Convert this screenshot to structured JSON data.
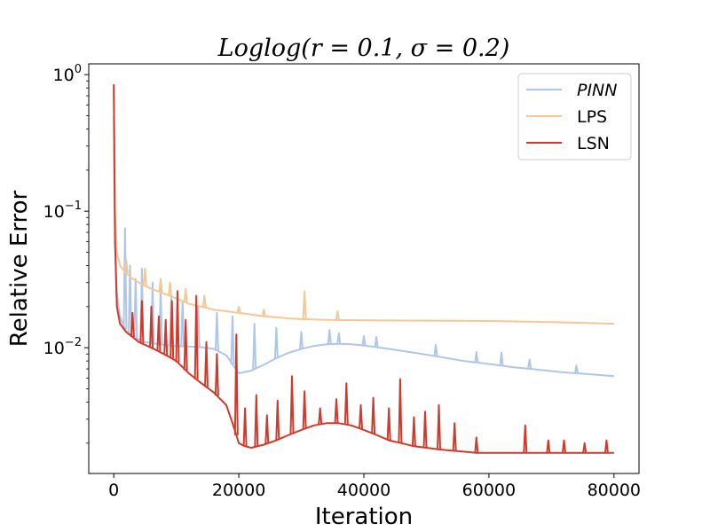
{
  "chart_data": {
    "type": "line",
    "title": "Loglog(r = 0.1, σ = 0.2)",
    "xlabel": "Iteration",
    "ylabel": "Relative Error",
    "xlim": [
      -4000,
      84000
    ],
    "ylim": [
      0.0012,
      1.2
    ],
    "yscale": "log",
    "x_ticks": [
      0,
      20000,
      40000,
      60000,
      80000
    ],
    "x_tick_labels": [
      "0",
      "20000",
      "40000",
      "60000",
      "80000"
    ],
    "y_ticks": [
      1,
      0.1,
      0.01
    ],
    "y_tick_labels": [
      {
        "base": "10",
        "exp": "0"
      },
      {
        "base": "10",
        "exp": "−1"
      },
      {
        "base": "10",
        "exp": "−2"
      }
    ],
    "grid": false,
    "legend_position": "top-right",
    "series": [
      {
        "name": "PINN",
        "color": "#aec7e8",
        "italic": true,
        "x": [
          0,
          200,
          500,
          1000,
          2000,
          3000,
          4000,
          5000,
          6000,
          8000,
          10000,
          12000,
          14000,
          16000,
          18000,
          20000,
          22000,
          24000,
          26000,
          28000,
          30000,
          32000,
          34000,
          36000,
          38000,
          40000,
          44000,
          48000,
          52000,
          56000,
          60000,
          64000,
          68000,
          72000,
          76000,
          80000
        ],
        "values": [
          0.5,
          0.06,
          0.025,
          0.017,
          0.013,
          0.012,
          0.0115,
          0.011,
          0.0108,
          0.0105,
          0.0103,
          0.0102,
          0.0101,
          0.0098,
          0.0088,
          0.0065,
          0.0068,
          0.0075,
          0.0084,
          0.0092,
          0.0098,
          0.0103,
          0.0106,
          0.0107,
          0.0106,
          0.0104,
          0.0098,
          0.0092,
          0.0086,
          0.008,
          0.0076,
          0.0072,
          0.0069,
          0.0066,
          0.0064,
          0.0062
        ],
        "spikes": [
          {
            "x": 1800,
            "y": 0.075
          },
          {
            "x": 2600,
            "y": 0.04
          },
          {
            "x": 3500,
            "y": 0.032
          },
          {
            "x": 4500,
            "y": 0.038
          },
          {
            "x": 6200,
            "y": 0.03
          },
          {
            "x": 7500,
            "y": 0.027
          },
          {
            "x": 9200,
            "y": 0.024
          },
          {
            "x": 11000,
            "y": 0.022
          },
          {
            "x": 13500,
            "y": 0.02
          },
          {
            "x": 16500,
            "y": 0.018
          },
          {
            "x": 19000,
            "y": 0.017
          },
          {
            "x": 22500,
            "y": 0.015
          },
          {
            "x": 26000,
            "y": 0.014
          },
          {
            "x": 30000,
            "y": 0.013
          },
          {
            "x": 34500,
            "y": 0.0135
          },
          {
            "x": 36000,
            "y": 0.0128
          },
          {
            "x": 40000,
            "y": 0.0122
          },
          {
            "x": 42000,
            "y": 0.012
          },
          {
            "x": 51500,
            "y": 0.0105
          },
          {
            "x": 58000,
            "y": 0.0093
          },
          {
            "x": 62000,
            "y": 0.0092
          },
          {
            "x": 66500,
            "y": 0.0082
          },
          {
            "x": 74000,
            "y": 0.0074
          }
        ]
      },
      {
        "name": "LPS",
        "color": "#f4c896",
        "italic": false,
        "x": [
          0,
          200,
          500,
          1000,
          2000,
          3000,
          4000,
          6000,
          8000,
          10000,
          12000,
          14000,
          16000,
          18000,
          20000,
          22000,
          24000,
          26000,
          28000,
          30000,
          34000,
          40000,
          50000,
          60000,
          70000,
          80000
        ],
        "values": [
          0.8,
          0.1,
          0.05,
          0.04,
          0.035,
          0.032,
          0.03,
          0.027,
          0.025,
          0.023,
          0.021,
          0.02,
          0.019,
          0.0185,
          0.018,
          0.0175,
          0.017,
          0.0167,
          0.0164,
          0.0162,
          0.016,
          0.0159,
          0.0158,
          0.0157,
          0.0154,
          0.015
        ],
        "spikes": [
          {
            "x": 2000,
            "y": 0.044
          },
          {
            "x": 5000,
            "y": 0.038
          },
          {
            "x": 7500,
            "y": 0.032
          },
          {
            "x": 9000,
            "y": 0.03
          },
          {
            "x": 11500,
            "y": 0.027
          },
          {
            "x": 14500,
            "y": 0.024
          },
          {
            "x": 20000,
            "y": 0.02
          },
          {
            "x": 24000,
            "y": 0.019
          },
          {
            "x": 30500,
            "y": 0.026
          },
          {
            "x": 35800,
            "y": 0.0185
          }
        ]
      },
      {
        "name": "LSN",
        "color": "#d03a2a",
        "italic": false,
        "x": [
          0,
          200,
          500,
          1000,
          2000,
          3000,
          4000,
          5000,
          6000,
          7000,
          8000,
          9000,
          10000,
          12000,
          14000,
          16000,
          18000,
          19000,
          20000,
          21000,
          22000,
          24000,
          26000,
          28000,
          30000,
          32000,
          34000,
          36000,
          38000,
          40000,
          42000,
          44000,
          46000,
          48000,
          50000,
          52000,
          55000,
          58000,
          60000,
          65000,
          70000,
          75000,
          80000
        ],
        "values": [
          0.85,
          0.06,
          0.02,
          0.015,
          0.013,
          0.012,
          0.011,
          0.0105,
          0.01,
          0.0095,
          0.009,
          0.0085,
          0.008,
          0.0065,
          0.0055,
          0.0047,
          0.0038,
          0.0028,
          0.002,
          0.0019,
          0.00185,
          0.00195,
          0.0021,
          0.0023,
          0.0025,
          0.0027,
          0.0028,
          0.0028,
          0.0027,
          0.0025,
          0.0023,
          0.0021,
          0.002,
          0.0019,
          0.00185,
          0.0018,
          0.00175,
          0.0017,
          0.0017,
          0.0017,
          0.0017,
          0.0017,
          0.0017
        ],
        "spikes": [
          {
            "x": 3000,
            "y": 0.018
          },
          {
            "x": 4500,
            "y": 0.022
          },
          {
            "x": 6000,
            "y": 0.02
          },
          {
            "x": 7200,
            "y": 0.017
          },
          {
            "x": 8300,
            "y": 0.016
          },
          {
            "x": 9300,
            "y": 0.022
          },
          {
            "x": 10200,
            "y": 0.026
          },
          {
            "x": 11500,
            "y": 0.016
          },
          {
            "x": 13200,
            "y": 0.024
          },
          {
            "x": 14800,
            "y": 0.011
          },
          {
            "x": 16500,
            "y": 0.009
          },
          {
            "x": 19600,
            "y": 0.0125
          },
          {
            "x": 21000,
            "y": 0.0036
          },
          {
            "x": 22800,
            "y": 0.0045
          },
          {
            "x": 24500,
            "y": 0.0032
          },
          {
            "x": 26200,
            "y": 0.0041
          },
          {
            "x": 28500,
            "y": 0.0062
          },
          {
            "x": 30500,
            "y": 0.0048
          },
          {
            "x": 33000,
            "y": 0.0036
          },
          {
            "x": 35600,
            "y": 0.0042
          },
          {
            "x": 37200,
            "y": 0.0055
          },
          {
            "x": 39500,
            "y": 0.0038
          },
          {
            "x": 41500,
            "y": 0.0043
          },
          {
            "x": 44000,
            "y": 0.0036
          },
          {
            "x": 45800,
            "y": 0.0059
          },
          {
            "x": 48000,
            "y": 0.0031
          },
          {
            "x": 49800,
            "y": 0.0034
          },
          {
            "x": 52000,
            "y": 0.0038
          },
          {
            "x": 54500,
            "y": 0.0028
          },
          {
            "x": 58000,
            "y": 0.0022
          },
          {
            "x": 65800,
            "y": 0.0027
          },
          {
            "x": 69500,
            "y": 0.0021
          },
          {
            "x": 72000,
            "y": 0.0021
          },
          {
            "x": 75300,
            "y": 0.002
          },
          {
            "x": 78800,
            "y": 0.0021
          }
        ]
      }
    ]
  }
}
